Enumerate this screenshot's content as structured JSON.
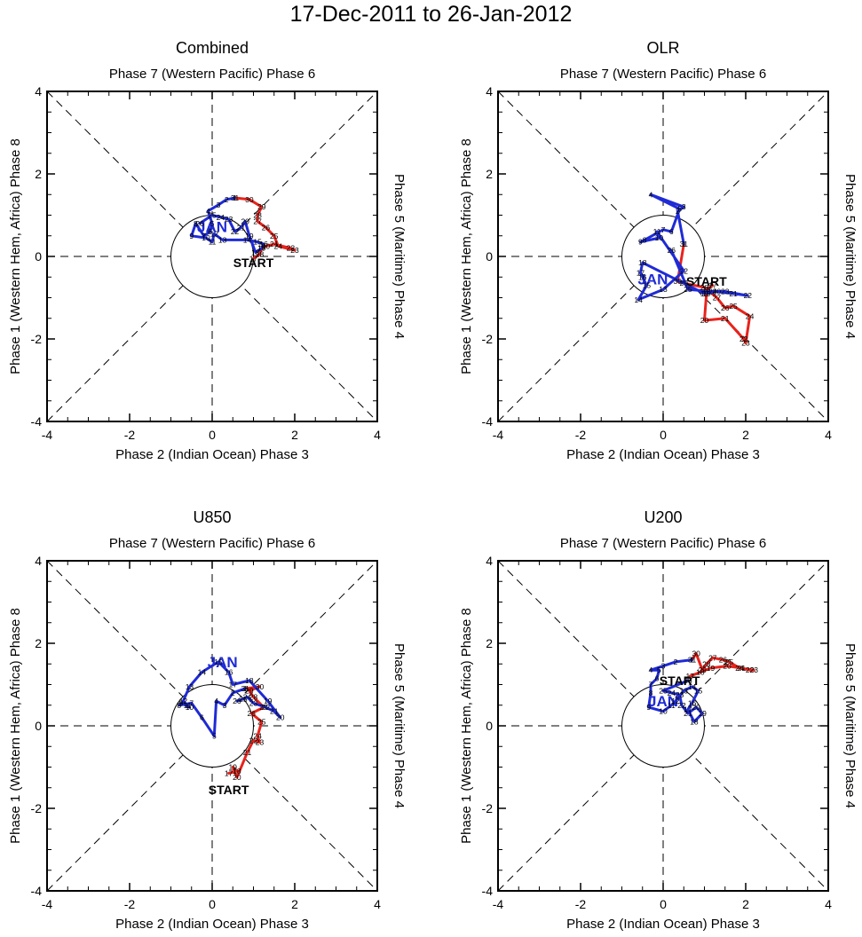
{
  "title": "17-Dec-2011 to 26-Jan-2012",
  "labels": {
    "top": "Phase 7 (Western Pacific) Phase 6",
    "bottom": "Phase 2 (Indian Ocean) Phase 3",
    "left": "Phase 1 (Western Hem, Africa) Phase 8",
    "right": "Phase 5 (Maritime) Phase 4",
    "start": "START",
    "month": "JAN"
  },
  "colors": {
    "december": "#e8231c",
    "january": "#1f2bd6"
  },
  "chart_data": [
    {
      "type": "line",
      "title": "Combined",
      "xlim": [
        -4,
        4
      ],
      "ylim": [
        -4,
        4
      ],
      "xticks": [
        "-4",
        "-2",
        "0",
        "2",
        "4"
      ],
      "yticks": [
        "-4",
        "-2",
        "0",
        "2",
        "4"
      ],
      "start_label": [
        1.0,
        -0.15
      ],
      "month_label": [
        0.0,
        0.72
      ],
      "series": [
        {
          "name": "Dec",
          "days": [
            17,
            18,
            19,
            20,
            21,
            22,
            23,
            24,
            25,
            26,
            27,
            28,
            29,
            30,
            31
          ],
          "x": [
            1.0,
            1.15,
            1.2,
            1.3,
            1.5,
            1.9,
            2.0,
            1.6,
            1.5,
            1.3,
            1.1,
            1.1,
            1.2,
            0.9,
            0.55
          ],
          "y": [
            -0.05,
            0.05,
            0.2,
            0.25,
            0.3,
            0.2,
            0.15,
            0.25,
            0.5,
            0.7,
            0.85,
            1.0,
            1.2,
            1.38,
            1.42
          ]
        },
        {
          "name": "Jan",
          "days": [
            1,
            2,
            3,
            4,
            5,
            6,
            7,
            8,
            9,
            10,
            11,
            12,
            13,
            14,
            15,
            16,
            17,
            18,
            19,
            20,
            21,
            22,
            23,
            24,
            25,
            26
          ],
          "x": [
            0.55,
            0.35,
            0.15,
            -0.1,
            0.0,
            -0.05,
            -0.2,
            -0.4,
            -0.5,
            -0.15,
            0.0,
            0.05,
            0.25,
            0.85,
            1.1,
            1.25,
            1.2,
            1.05,
            0.9,
            0.8,
            0.7,
            0.55,
            0.4,
            0.2,
            0.0,
            -0.3
          ],
          "y": [
            1.42,
            1.38,
            1.25,
            1.1,
            0.8,
            0.6,
            0.5,
            0.8,
            0.5,
            0.45,
            0.35,
            0.55,
            0.4,
            0.4,
            0.35,
            0.3,
            0.2,
            0.1,
            0.5,
            0.85,
            0.7,
            0.6,
            0.9,
            0.95,
            1.0,
            0.8
          ]
        }
      ]
    },
    {
      "type": "line",
      "title": "OLR",
      "xlim": [
        -4,
        4
      ],
      "ylim": [
        -4,
        4
      ],
      "xticks": [
        "-4",
        "-2",
        "0",
        "2",
        "4"
      ],
      "yticks": [
        "-4",
        "-2",
        "0",
        "2",
        "4"
      ],
      "start_label": [
        1.05,
        -0.6
      ],
      "month_label": [
        -0.25,
        -0.55
      ],
      "series": [
        {
          "name": "Dec",
          "days": [
            17,
            18,
            19,
            20,
            21,
            22,
            23,
            24,
            25,
            26,
            27,
            28,
            29,
            30,
            31
          ],
          "x": [
            1.2,
            1.05,
            1.05,
            1.0,
            1.5,
            1.95,
            2.0,
            2.1,
            1.7,
            1.5,
            1.3,
            1.0,
            0.5,
            0.35,
            0.5
          ],
          "y": [
            -0.7,
            -0.8,
            -0.9,
            -1.55,
            -1.5,
            -2.0,
            -2.1,
            -1.45,
            -1.2,
            -1.25,
            -1.0,
            -0.75,
            -0.65,
            -0.6,
            0.3
          ]
        },
        {
          "name": "Jan",
          "days": [
            1,
            2,
            3,
            4,
            5,
            6,
            7,
            8,
            9,
            10,
            11,
            12,
            13,
            14,
            15,
            16,
            17,
            18,
            19,
            20,
            21,
            22,
            23,
            24,
            25,
            26
          ],
          "x": [
            0.5,
            0.35,
            0.5,
            -0.3,
            0.4,
            0.2,
            0.0,
            -0.45,
            -0.55,
            -0.1,
            -0.15,
            0.5,
            0.0,
            -0.6,
            -0.4,
            -0.5,
            -0.55,
            -0.5,
            1.0,
            1.3,
            1.7,
            2.05,
            1.5,
            1.2,
            0.6,
            0.2
          ],
          "y": [
            0.3,
            1.1,
            1.2,
            1.5,
            1.15,
            0.6,
            0.65,
            0.4,
            0.35,
            0.45,
            0.6,
            -0.35,
            -0.8,
            -1.05,
            -0.7,
            -0.5,
            -0.4,
            -0.15,
            -0.9,
            -0.85,
            -0.9,
            -0.95,
            -0.85,
            -0.85,
            -0.8,
            0.15
          ]
        }
      ]
    },
    {
      "type": "line",
      "title": "U850",
      "xlim": [
        -4,
        4
      ],
      "ylim": [
        -4,
        4
      ],
      "xticks": [
        "-4",
        "-2",
        "0",
        "2",
        "4"
      ],
      "yticks": [
        "-4",
        "-2",
        "0",
        "2",
        "4"
      ],
      "start_label": [
        0.4,
        -1.55
      ],
      "month_label": [
        0.25,
        1.55
      ],
      "series": [
        {
          "name": "Dec",
          "days": [
            17,
            18,
            19,
            20,
            21,
            22,
            23,
            24,
            25,
            26,
            27,
            28,
            29,
            30,
            31
          ],
          "x": [
            0.4,
            0.6,
            0.5,
            0.6,
            0.85,
            1.0,
            1.15,
            1.1,
            1.2,
            0.95,
            1.25,
            1.0,
            0.9,
            1.15,
            0.8
          ],
          "y": [
            -1.15,
            -1.1,
            -1.0,
            -1.25,
            -0.65,
            -0.35,
            -0.4,
            -0.25,
            0.1,
            0.3,
            0.45,
            0.7,
            0.85,
            0.95,
            0.9
          ]
        },
        {
          "name": "Jan",
          "days": [
            1,
            2,
            3,
            4,
            5,
            6,
            7,
            8,
            9,
            10,
            11,
            12,
            13,
            14,
            15,
            16,
            17,
            18,
            19,
            20,
            21,
            22,
            23,
            24,
            25,
            26
          ],
          "x": [
            0.8,
            0.5,
            0.3,
            0.1,
            0.05,
            -0.25,
            -0.5,
            -0.8,
            -0.75,
            -0.55,
            -0.6,
            -0.7,
            -0.55,
            -0.25,
            0.15,
            0.4,
            0.5,
            0.9,
            1.35,
            1.65,
            1.5,
            1.3,
            1.0,
            0.85,
            0.75,
            0.6
          ],
          "y": [
            0.9,
            0.8,
            0.5,
            0.6,
            -0.25,
            0.2,
            0.55,
            0.5,
            0.55,
            0.45,
            0.5,
            0.6,
            0.95,
            1.3,
            1.55,
            1.3,
            1.0,
            1.1,
            0.6,
            0.2,
            0.35,
            0.45,
            0.55,
            0.7,
            0.65,
            0.6
          ]
        }
      ]
    },
    {
      "type": "line",
      "title": "U200",
      "xlim": [
        -4,
        4
      ],
      "ylim": [
        -4,
        4
      ],
      "xticks": [
        "-4",
        "-2",
        "0",
        "2",
        "4"
      ],
      "yticks": [
        "-4",
        "-2",
        "0",
        "2",
        "4"
      ],
      "start_label": [
        0.4,
        1.1
      ],
      "month_label": [
        0.0,
        0.6
      ],
      "series": [
        {
          "name": "Dec",
          "days": [
            17,
            18,
            19,
            20,
            21,
            22,
            23,
            24,
            25,
            26,
            27,
            28,
            29,
            30,
            31
          ],
          "x": [
            0.65,
            0.9,
            1.15,
            1.55,
            1.9,
            2.1,
            2.2,
            1.85,
            1.6,
            1.45,
            1.2,
            1.05,
            0.95,
            0.8,
            0.7
          ],
          "y": [
            1.2,
            1.3,
            1.4,
            1.45,
            1.4,
            1.35,
            1.35,
            1.4,
            1.55,
            1.6,
            1.65,
            1.5,
            1.35,
            1.75,
            1.6
          ]
        },
        {
          "name": "Jan",
          "days": [
            1,
            2,
            3,
            4,
            5,
            6,
            7,
            8,
            9,
            10,
            11,
            12,
            13,
            14,
            15,
            16,
            17,
            18,
            19,
            20,
            21,
            22,
            23,
            24,
            25,
            26
          ],
          "x": [
            0.7,
            0.3,
            0.0,
            -0.3,
            -0.1,
            -0.15,
            -0.3,
            -0.3,
            -0.35,
            0.0,
            0.2,
            0.3,
            0.5,
            0.7,
            0.85,
            0.7,
            0.6,
            0.75,
            0.95,
            0.8,
            0.6,
            0.45,
            0.4,
            0.2,
            0.0,
            0.6
          ],
          "y": [
            1.6,
            1.55,
            1.45,
            1.35,
            1.35,
            1.15,
            1.0,
            0.8,
            0.45,
            0.35,
            0.5,
            0.6,
            0.85,
            0.95,
            0.85,
            0.55,
            0.4,
            0.1,
            0.3,
            0.45,
            0.3,
            0.5,
            0.75,
            0.8,
            0.85,
            1.1
          ]
        }
      ]
    }
  ]
}
